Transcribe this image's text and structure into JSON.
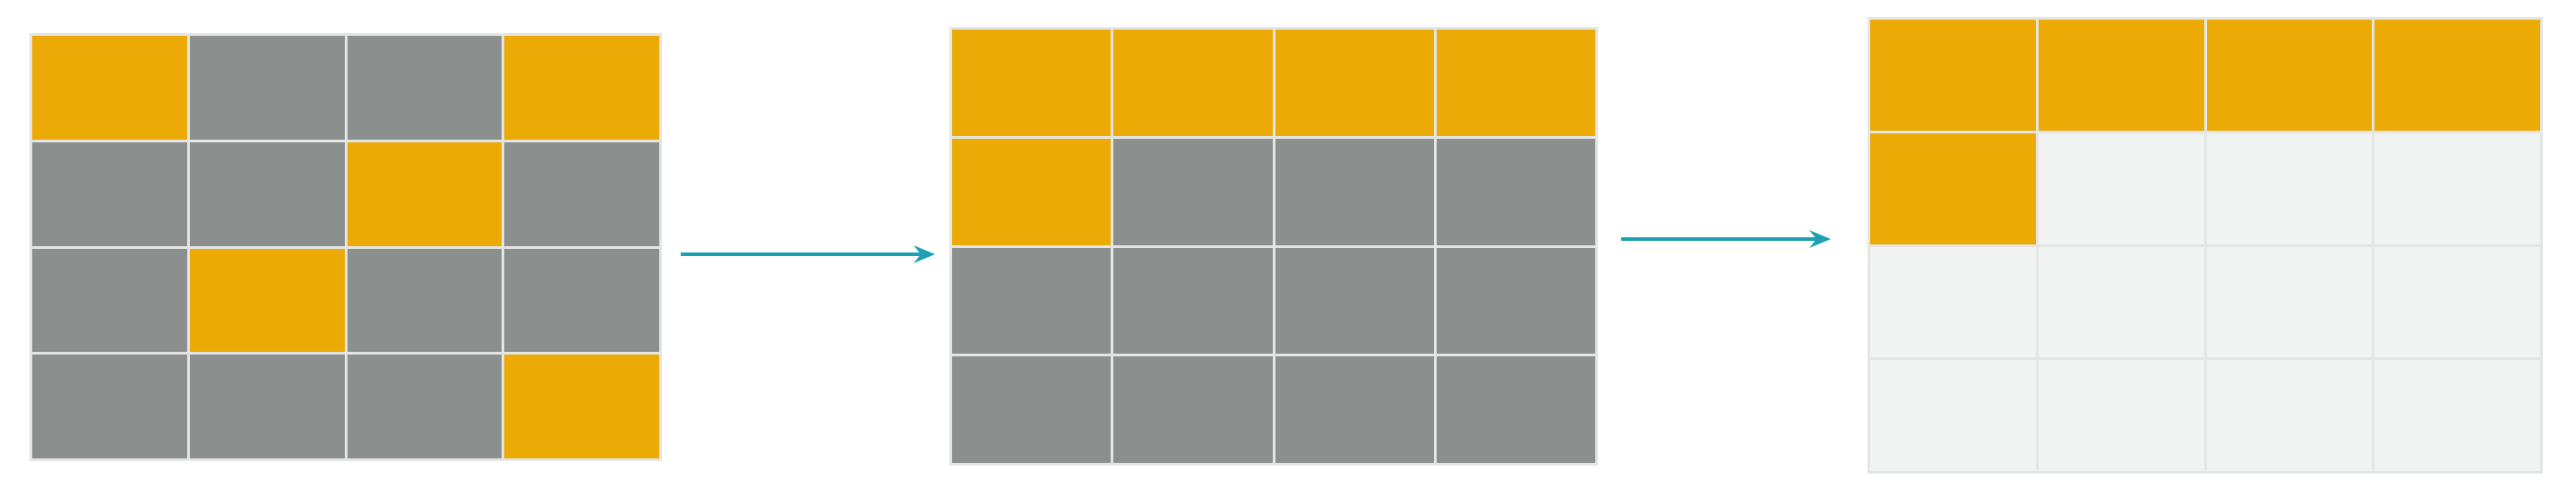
{
  "colors": {
    "highlight": "#ebaa05",
    "filled": "#8b8f8e",
    "empty": "#f1f3f2",
    "arrow": "#1ba0b4"
  },
  "grids": [
    {
      "name": "input-grid",
      "cells": [
        [
          "highlight",
          "filled",
          "filled",
          "highlight"
        ],
        [
          "filled",
          "filled",
          "highlight",
          "filled"
        ],
        [
          "filled",
          "highlight",
          "filled",
          "filled"
        ],
        [
          "filled",
          "filled",
          "filled",
          "highlight"
        ]
      ]
    },
    {
      "name": "sorted-grid",
      "cells": [
        [
          "highlight",
          "highlight",
          "highlight",
          "highlight"
        ],
        [
          "highlight",
          "filled",
          "filled",
          "filled"
        ],
        [
          "filled",
          "filled",
          "filled",
          "filled"
        ],
        [
          "filled",
          "filled",
          "filled",
          "filled"
        ]
      ]
    },
    {
      "name": "output-grid",
      "cells": [
        [
          "highlight",
          "highlight",
          "highlight",
          "highlight"
        ],
        [
          "highlight",
          "empty",
          "empty",
          "empty"
        ],
        [
          "empty",
          "empty",
          "empty",
          "empty"
        ],
        [
          "empty",
          "empty",
          "empty",
          "empty"
        ]
      ]
    }
  ]
}
